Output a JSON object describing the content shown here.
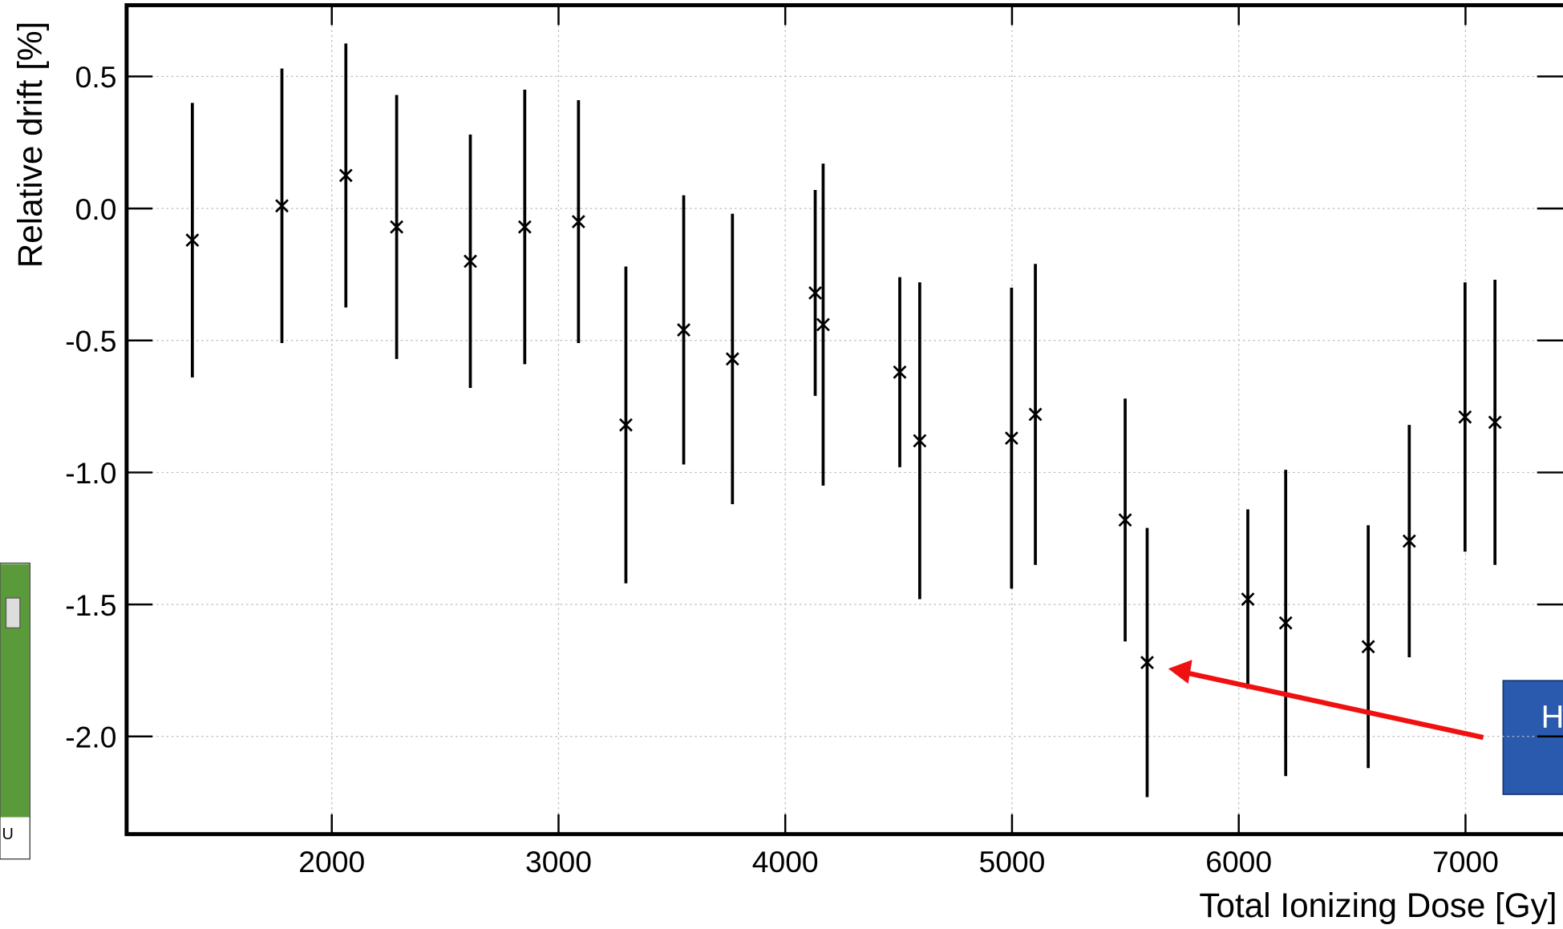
{
  "chart_data": {
    "type": "scatter",
    "x_label": "Total Ionizing Dose [Gy]",
    "y_label": "Relative drift [%]",
    "xlim": [
      1095,
      7430
    ],
    "ylim": [
      -2.37,
      0.77
    ],
    "xticks": [
      2000,
      3000,
      4000,
      5000,
      6000,
      7000
    ],
    "yticks": [
      0.5,
      {
        "value": 0,
        "label": "0.0"
      },
      -0.5,
      {
        "value": -1,
        "label": "-1.0"
      },
      -1.5,
      {
        "value": -2,
        "label": "-2.0"
      }
    ],
    "grid": true,
    "series": [
      {
        "color": "#000000",
        "x": [
          1385,
          1780,
          2062,
          2286,
          2611,
          2851,
          3088,
          3297,
          3552,
          3767,
          4132,
          4167,
          4505,
          4593,
          4998,
          5103,
          5499,
          5596,
          6040,
          6207,
          6571,
          6752,
          6998,
          7130
        ],
        "values": [
          -0.12,
          0.01,
          0.125,
          -0.07,
          -0.2,
          -0.07,
          -0.05,
          -0.82,
          -0.46,
          -0.57,
          -0.32,
          -0.44,
          -0.62,
          -0.88,
          -0.87,
          -0.78,
          -1.18,
          -1.72,
          -1.48,
          -1.57,
          -1.66,
          -1.26,
          -0.79,
          -0.81
        ],
        "errors": [
          0.52,
          0.52,
          0.5,
          0.5,
          0.48,
          0.52,
          0.46,
          0.6,
          0.51,
          0.55,
          0.39,
          0.61,
          0.36,
          0.6,
          0.57,
          0.57,
          0.46,
          0.51,
          0.34,
          0.58,
          0.46,
          0.44,
          0.51,
          0.54
        ]
      }
    ],
    "annotation": "H",
    "inset_label": "U"
  }
}
